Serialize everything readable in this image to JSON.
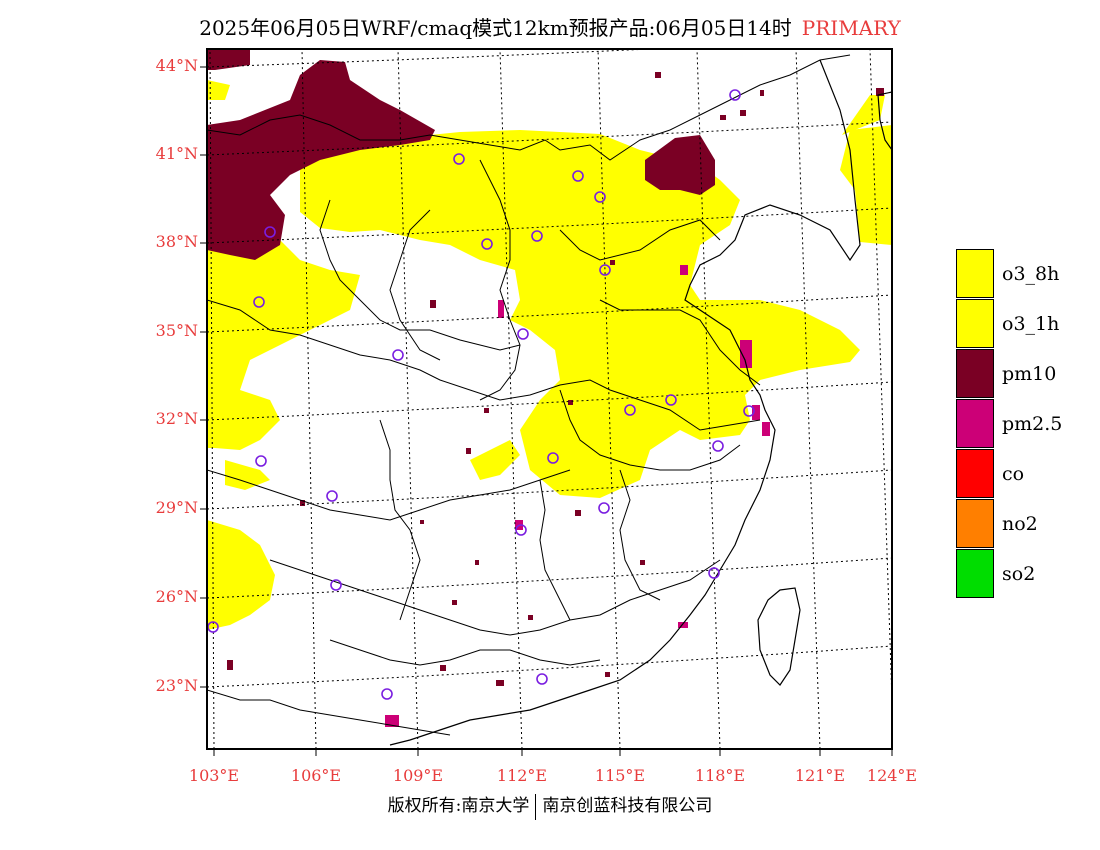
{
  "title": {
    "main": "2025年06月05日WRF/cmaq模式12km预报产品:06月05日14时",
    "tag": "PRIMARY"
  },
  "colors": {
    "label_red": "#e83c3c",
    "o3_8h": "#ffff00",
    "o3_1h": "#ffff00",
    "pm10": "#7a0024",
    "pm25": "#cc0077",
    "co": "#ff0000",
    "no2": "#ff7f00",
    "so2": "#00dd00",
    "station_ring": "#7a1ee0"
  },
  "lat_labels": [
    "44°N",
    "41°N",
    "38°N",
    "35°N",
    "32°N",
    "29°N",
    "26°N",
    "23°N"
  ],
  "lon_labels": [
    "103°E",
    "106°E",
    "109°E",
    "112°E",
    "115°E",
    "118°E",
    "121°E",
    "124°E"
  ],
  "legend": [
    {
      "label": "o3_8h",
      "color": "#ffff00"
    },
    {
      "label": "o3_1h",
      "color": "#ffff00"
    },
    {
      "label": "pm10",
      "color": "#7a0024"
    },
    {
      "label": "pm2.5",
      "color": "#cc0077"
    },
    {
      "label": "co",
      "color": "#ff0000"
    },
    {
      "label": "no2",
      "color": "#ff7f00"
    },
    {
      "label": "so2",
      "color": "#00dd00"
    }
  ],
  "footer": {
    "left": "版权所有:南京大学",
    "right": "南京创蓝科技有限公司"
  },
  "map_content": {
    "region": "Eastern and Central China",
    "dominant_pollutant_field": "o3 (yellow) over north and east China; pm10 (dark red) over northwest and Beijing-Tianjin area; scattered pm2.5 cells",
    "station_count": 27
  }
}
